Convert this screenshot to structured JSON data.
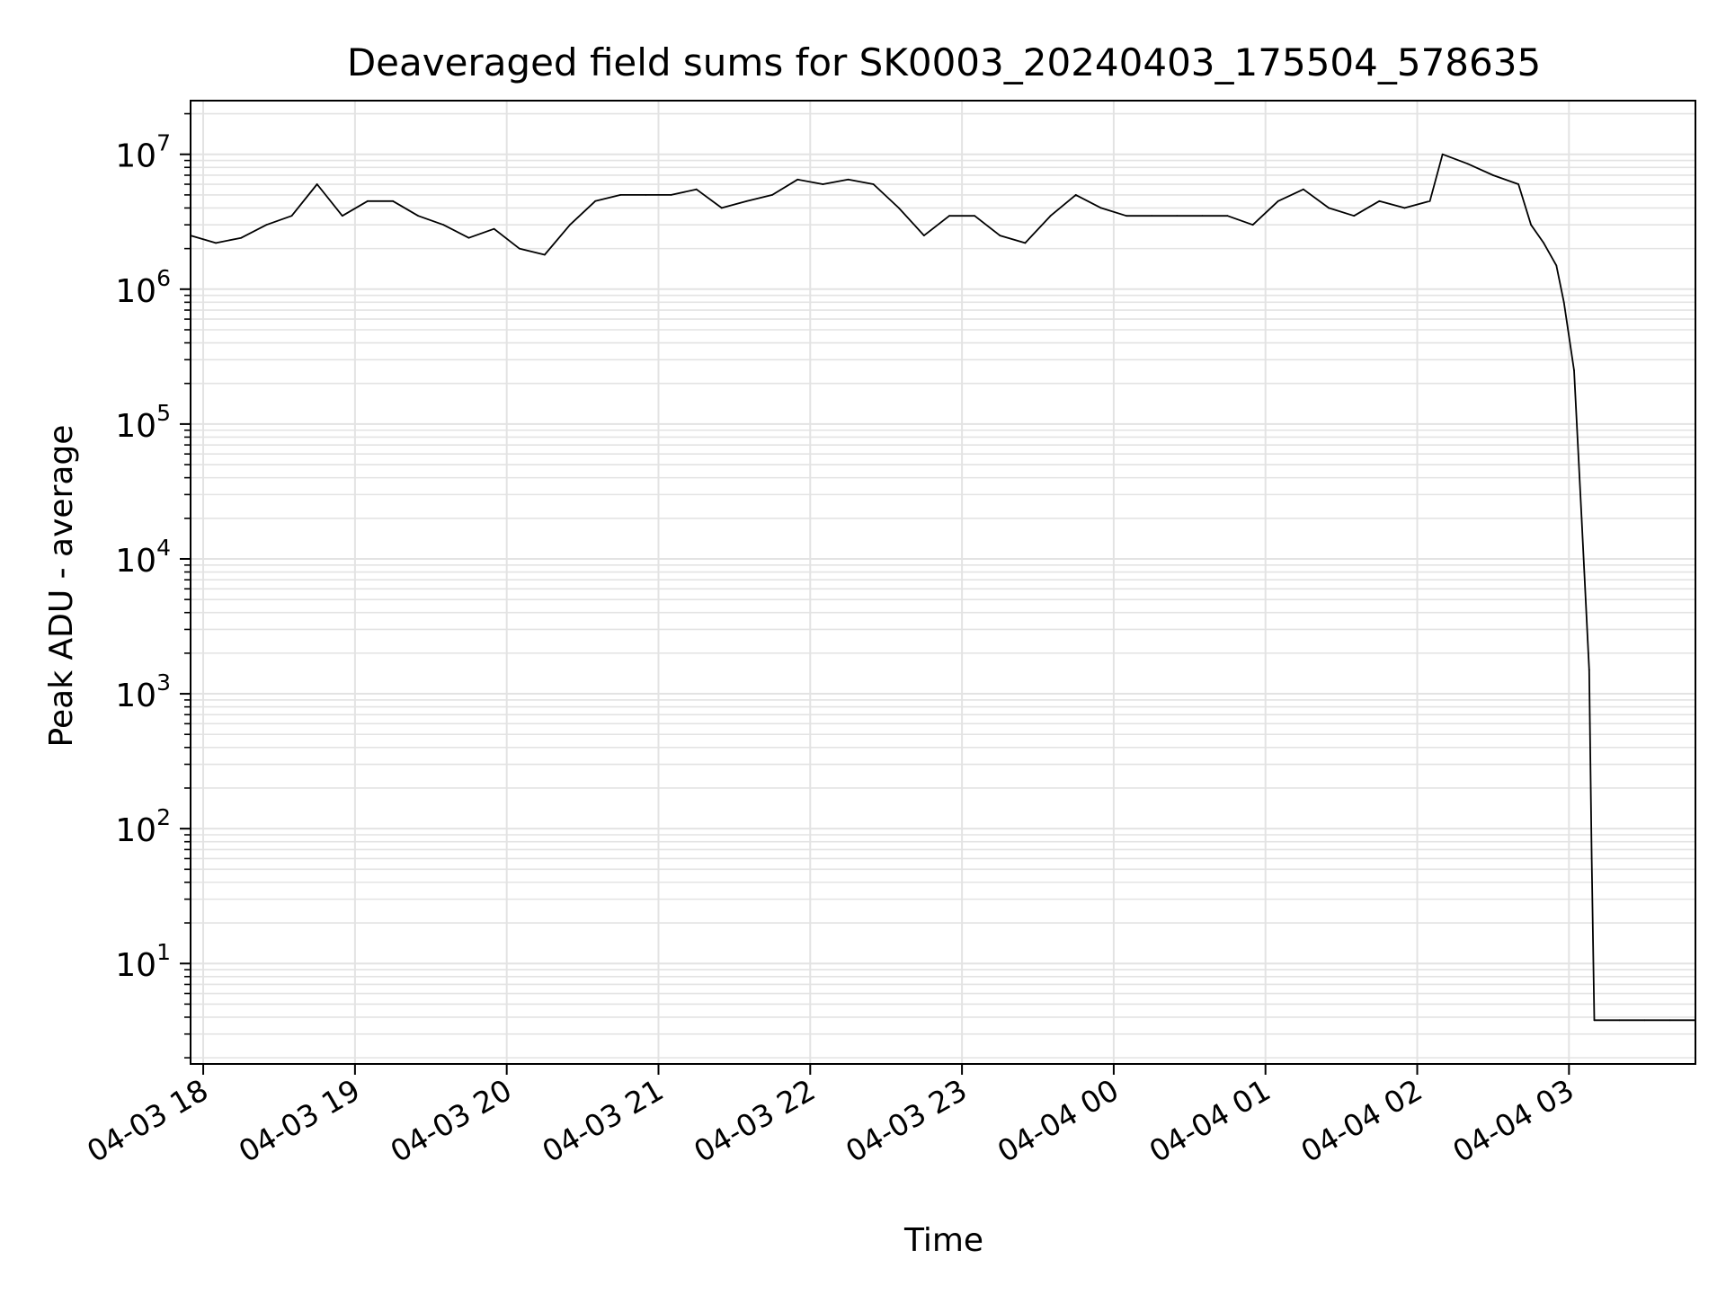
{
  "chart_data": {
    "type": "line",
    "title": "Deaveraged field sums for SK0003_20240403_175504_578635",
    "xlabel": "Time",
    "ylabel": "Peak ADU - average",
    "yscale": "log",
    "grid": true,
    "legend": "none",
    "line_color": "#000000",
    "grid_color": "#e3e3e3",
    "xlim": [
      "2024-04-03 17:55",
      "2024-04-04 03:50"
    ],
    "ylim": [
      1.8,
      25000000
    ],
    "x_ticks": [
      {
        "value": "2024-04-03 18:00",
        "label": "04-03 18"
      },
      {
        "value": "2024-04-03 19:00",
        "label": "04-03 19"
      },
      {
        "value": "2024-04-03 20:00",
        "label": "04-03 20"
      },
      {
        "value": "2024-04-03 21:00",
        "label": "04-03 21"
      },
      {
        "value": "2024-04-03 22:00",
        "label": "04-03 22"
      },
      {
        "value": "2024-04-03 23:00",
        "label": "04-03 23"
      },
      {
        "value": "2024-04-04 00:00",
        "label": "04-04 00"
      },
      {
        "value": "2024-04-04 01:00",
        "label": "04-04 01"
      },
      {
        "value": "2024-04-04 02:00",
        "label": "04-04 02"
      },
      {
        "value": "2024-04-04 03:00",
        "label": "04-04 03"
      }
    ],
    "y_ticks": [
      {
        "value": 10,
        "base": "10",
        "exp": "1"
      },
      {
        "value": 100,
        "base": "10",
        "exp": "2"
      },
      {
        "value": 1000,
        "base": "10",
        "exp": "3"
      },
      {
        "value": 10000,
        "base": "10",
        "exp": "4"
      },
      {
        "value": 100000,
        "base": "10",
        "exp": "5"
      },
      {
        "value": 1000000,
        "base": "10",
        "exp": "6"
      },
      {
        "value": 10000000,
        "base": "10",
        "exp": "7"
      }
    ],
    "series": [
      {
        "x": [
          "2024-04-03 17:55",
          "2024-04-03 18:05",
          "2024-04-03 18:15",
          "2024-04-03 18:25",
          "2024-04-03 18:35",
          "2024-04-03 18:45",
          "2024-04-03 18:55",
          "2024-04-03 19:05",
          "2024-04-03 19:15",
          "2024-04-03 19:25",
          "2024-04-03 19:35",
          "2024-04-03 19:45",
          "2024-04-03 19:55",
          "2024-04-03 20:05",
          "2024-04-03 20:15",
          "2024-04-03 20:25",
          "2024-04-03 20:35",
          "2024-04-03 20:45",
          "2024-04-03 20:55",
          "2024-04-03 21:05",
          "2024-04-03 21:15",
          "2024-04-03 21:25",
          "2024-04-03 21:35",
          "2024-04-03 21:45",
          "2024-04-03 21:55",
          "2024-04-03 22:05",
          "2024-04-03 22:15",
          "2024-04-03 22:25",
          "2024-04-03 22:35",
          "2024-04-03 22:45",
          "2024-04-03 22:55",
          "2024-04-03 23:05",
          "2024-04-03 23:15",
          "2024-04-03 23:25",
          "2024-04-03 23:35",
          "2024-04-03 23:45",
          "2024-04-03 23:55",
          "2024-04-04 00:05",
          "2024-04-04 00:15",
          "2024-04-04 00:25",
          "2024-04-04 00:35",
          "2024-04-04 00:45",
          "2024-04-04 00:55",
          "2024-04-04 01:05",
          "2024-04-04 01:15",
          "2024-04-04 01:25",
          "2024-04-04 01:35",
          "2024-04-04 01:45",
          "2024-04-04 01:55",
          "2024-04-04 02:05",
          "2024-04-04 02:10",
          "2024-04-04 02:20",
          "2024-04-04 02:30",
          "2024-04-04 02:40",
          "2024-04-04 02:45",
          "2024-04-04 02:50",
          "2024-04-04 02:55",
          "2024-04-04 02:58",
          "2024-04-04 03:02",
          "2024-04-04 03:05",
          "2024-04-04 03:08",
          "2024-04-04 03:09",
          "2024-04-04 03:10",
          "2024-04-04 03:20",
          "2024-04-04 03:30",
          "2024-04-04 03:40",
          "2024-04-04 03:50"
        ],
        "y": [
          2500000,
          2200000,
          2400000,
          3000000,
          3500000,
          6000000,
          3500000,
          4500000,
          4500000,
          3500000,
          3000000,
          2400000,
          2800000,
          2000000,
          1800000,
          3000000,
          4500000,
          5000000,
          5000000,
          5000000,
          5500000,
          4000000,
          4500000,
          5000000,
          6500000,
          6000000,
          6500000,
          6000000,
          4000000,
          2500000,
          3500000,
          3500000,
          2500000,
          2200000,
          3500000,
          5000000,
          4000000,
          3500000,
          3500000,
          3500000,
          3500000,
          3500000,
          3000000,
          4500000,
          5500000,
          4000000,
          3500000,
          4500000,
          4000000,
          4500000,
          10000000,
          8500000,
          7000000,
          6000000,
          3000000,
          2200000,
          1500000,
          800000,
          250000,
          20000,
          1500,
          60,
          3.8,
          3.8,
          3.8,
          3.8,
          3.8
        ]
      }
    ]
  }
}
